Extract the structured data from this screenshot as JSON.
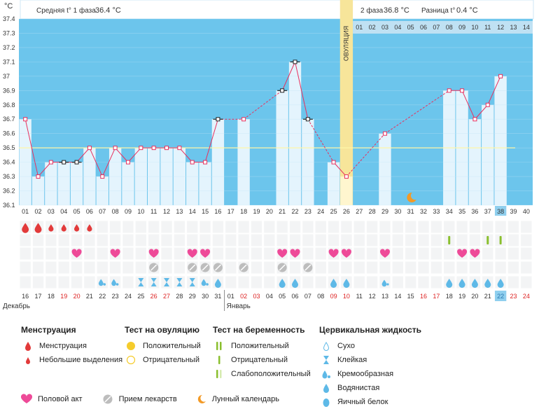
{
  "header": {
    "unit": "°C",
    "phase1_label": "Средняя t° 1 фаза",
    "phase1_value": "36.4 °C",
    "phase2_label": "2 фаза",
    "phase2_value": "36.8 °C",
    "diff_label": "Разница t°",
    "diff_value": "0.4 °C",
    "ovulation_label": "ОВУЛЯЦИЯ"
  },
  "chart_data": {
    "type": "bar",
    "ylim": [
      36.1,
      37.4
    ],
    "y_ticks": [
      "36.1",
      "36.2",
      "36.3",
      "36.4",
      "36.5",
      "36.6",
      "36.7",
      "36.8",
      "36.9",
      "37",
      "37.1",
      "37.2",
      "37.3",
      "37.4"
    ],
    "coverline": 36.5,
    "ovulation_day_index": 25,
    "cycle_days": [
      "01",
      "02",
      "03",
      "04",
      "05",
      "06",
      "07",
      "08",
      "09",
      "10",
      "11",
      "12",
      "13",
      "14",
      "15",
      "16",
      "17",
      "18",
      "19",
      "20",
      "21",
      "22",
      "23",
      "24",
      "25",
      "26",
      "27",
      "28",
      "29",
      "30",
      "31",
      "32",
      "33",
      "34",
      "35",
      "36",
      "37",
      "38",
      "39",
      "40"
    ],
    "post_ovulation_days": [
      "01",
      "02",
      "03",
      "04",
      "05",
      "06",
      "07",
      "08",
      "09",
      "10",
      "11",
      "12",
      "13",
      "14"
    ],
    "current_day_index": 37,
    "temperatures": [
      36.7,
      36.3,
      36.4,
      36.4,
      36.4,
      36.5,
      36.3,
      36.5,
      36.4,
      36.5,
      36.5,
      36.5,
      36.5,
      36.4,
      36.4,
      36.7,
      null,
      36.7,
      null,
      null,
      36.9,
      37.1,
      36.7,
      null,
      36.4,
      36.3,
      null,
      null,
      36.6,
      null,
      null,
      null,
      null,
      36.9,
      36.9,
      36.7,
      36.8,
      37.0,
      null,
      null
    ],
    "point_style": [
      "pink",
      "pink",
      "pink",
      "black",
      "black",
      "pink",
      "pink",
      "pink",
      "pink",
      "pink",
      "pink",
      "pink",
      "pink",
      "pink",
      "pink",
      "black",
      null,
      "pink",
      null,
      null,
      "black",
      "black",
      "black",
      null,
      "pink",
      "pink",
      null,
      null,
      "pink",
      null,
      null,
      null,
      null,
      "pink",
      "pink",
      "pink",
      "pink",
      "pink",
      null,
      null
    ],
    "line_style": [
      "solid",
      "solid",
      "solid",
      "solid",
      "solid",
      "solid",
      "solid",
      "solid",
      "solid",
      "solid",
      "solid",
      "solid",
      "solid",
      "solid",
      "solid",
      "dashed",
      null,
      "dashed",
      null,
      null,
      "solid",
      "solid",
      "dashed",
      null,
      "solid",
      "dashed",
      null,
      null,
      "dashed",
      null,
      null,
      null,
      null,
      "solid",
      "solid",
      "solid",
      "solid",
      null,
      null,
      null
    ],
    "dates": [
      "16",
      "17",
      "18",
      "19",
      "20",
      "21",
      "22",
      "23",
      "24",
      "25",
      "26",
      "27",
      "28",
      "29",
      "30",
      "31",
      "01",
      "02",
      "03",
      "04",
      "05",
      "06",
      "07",
      "08",
      "09",
      "10",
      "11",
      "12",
      "13",
      "14",
      "15",
      "16",
      "17",
      "18",
      "19",
      "20",
      "21",
      "22",
      "23",
      "24"
    ],
    "date_red": [
      false,
      false,
      false,
      true,
      true,
      false,
      false,
      false,
      false,
      false,
      true,
      true,
      false,
      false,
      false,
      false,
      false,
      true,
      true,
      false,
      false,
      false,
      false,
      false,
      true,
      true,
      false,
      false,
      false,
      false,
      false,
      true,
      true,
      false,
      false,
      false,
      false,
      false,
      true,
      true
    ],
    "months": [
      {
        "label": "Декабрь",
        "start_index": 0
      },
      {
        "label": "Январь",
        "start_index": 16
      }
    ],
    "moon_day_index": 30,
    "marks": {
      "menstruation_heavy": [
        0,
        1
      ],
      "menstruation_light": [
        2,
        3,
        4,
        5
      ],
      "intercourse": [
        4,
        7,
        10,
        13,
        14,
        20,
        21,
        24,
        25,
        28,
        34,
        35
      ],
      "pregnancy_positive": [
        33,
        36,
        37
      ],
      "medication": [
        10,
        13,
        14,
        15,
        17,
        20,
        22
      ],
      "fluid_creamy": [
        6,
        7,
        14
      ],
      "fluid_sticky": [
        9,
        10,
        11,
        12,
        13
      ],
      "fluid_watery": [
        15,
        20,
        21,
        24,
        25,
        33,
        34,
        35,
        36,
        37
      ],
      "fluid_eggwhite": [
        28
      ]
    }
  },
  "legend": {
    "menstruation": {
      "title": "Менструация",
      "items": [
        "Менструация",
        "Небольшие выделения"
      ]
    },
    "ovulation_test": {
      "title": "Тест на овуляцию",
      "items": [
        "Положительный",
        "Отрицательный"
      ]
    },
    "pregnancy_test": {
      "title": "Тест на беременность",
      "items": [
        "Положительный",
        "Отрицательный",
        "Слабоположительный"
      ]
    },
    "cervical": {
      "title": "Цервикальная жидкость",
      "items": [
        "Сухо",
        "Клейкая",
        "Кремообразная",
        "Водянистая",
        "Яичный белок"
      ]
    },
    "extra": {
      "intercourse": "Половой акт",
      "medication": "Прием лекарств",
      "moon": "Лунный календарь"
    }
  },
  "colors": {
    "sky": "#6cc5ec",
    "bar": "#e4f4fd",
    "ovulation": "#f7e59a",
    "menstruation": "#e23a3a",
    "heart": "#ee4a98",
    "drop": "#5eb9e7",
    "pregnancy": "#8abf2e",
    "sun": "#f5cc2c",
    "moon": "#f39a26",
    "line": "#e8305e"
  }
}
